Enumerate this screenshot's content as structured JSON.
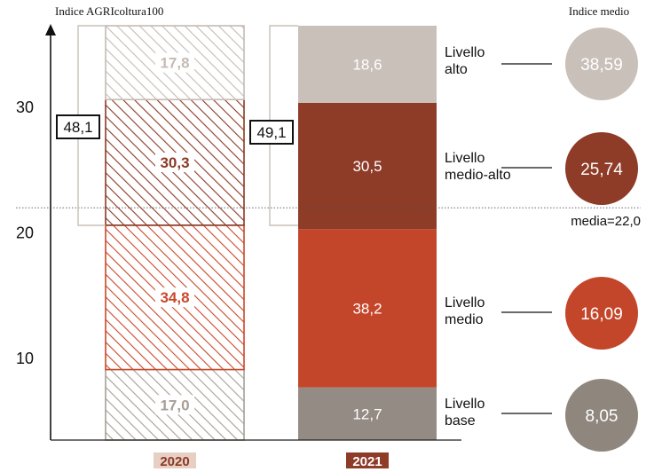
{
  "chart_data": {
    "type": "bar",
    "subtype": "stacked-100",
    "title": "Indice AGRIcoltura100",
    "categories": [
      "2020",
      "2021"
    ],
    "series": [
      {
        "name": "Livello base",
        "values": [
          17.0,
          12.7
        ],
        "labels": [
          "17,0",
          "12,7"
        ]
      },
      {
        "name": "Livello medio",
        "values": [
          34.8,
          38.2
        ],
        "labels": [
          "34,8",
          "38,2"
        ]
      },
      {
        "name": "Livello medio-alto",
        "values": [
          30.3,
          30.5
        ],
        "labels": [
          "30,3",
          "30,5"
        ]
      },
      {
        "name": "Livello alto",
        "values": [
          17.8,
          18.6
        ],
        "labels": [
          "17,8",
          "18,6"
        ]
      }
    ],
    "series_label_lines": [
      [
        "Livello",
        "base"
      ],
      [
        "Livello",
        "medio"
      ],
      [
        "Livello",
        "medio-alto"
      ],
      [
        "Livello",
        "alto"
      ]
    ],
    "combined_top_levels": {
      "values": [
        48.1,
        49.1
      ],
      "labels": [
        "48,1",
        "49,1"
      ]
    },
    "y_axis": {
      "ticks": [
        10,
        20,
        30
      ],
      "range": [
        3.5,
        36.5
      ]
    },
    "reference_line": {
      "value": 22.0,
      "label": "media=22,0"
    },
    "average_index": {
      "title": "Indice medio",
      "values": [
        8.05,
        16.09,
        25.74,
        38.59
      ],
      "labels": [
        "8,05",
        "16,09",
        "25,74",
        "38,59"
      ]
    },
    "colors": {
      "2020": {
        "Livello base": "#a79e97",
        "Livello medio": "#c9482a",
        "Livello medio-alto": "#8b3a26",
        "Livello alto": "#c5bbb3"
      },
      "2021": {
        "Livello base": "#948b84",
        "Livello medio": "#c4462a",
        "Livello medio-alto": "#8e3b28",
        "Livello alto": "#c9c0ba"
      },
      "circles": [
        "#8f867e",
        "#c4462a",
        "#8e3b28",
        "#c9c0ba"
      ],
      "axis": "#111111",
      "year_2020_bg": "#e8cfc4",
      "year_2021_bg": "#8e3b28"
    }
  }
}
